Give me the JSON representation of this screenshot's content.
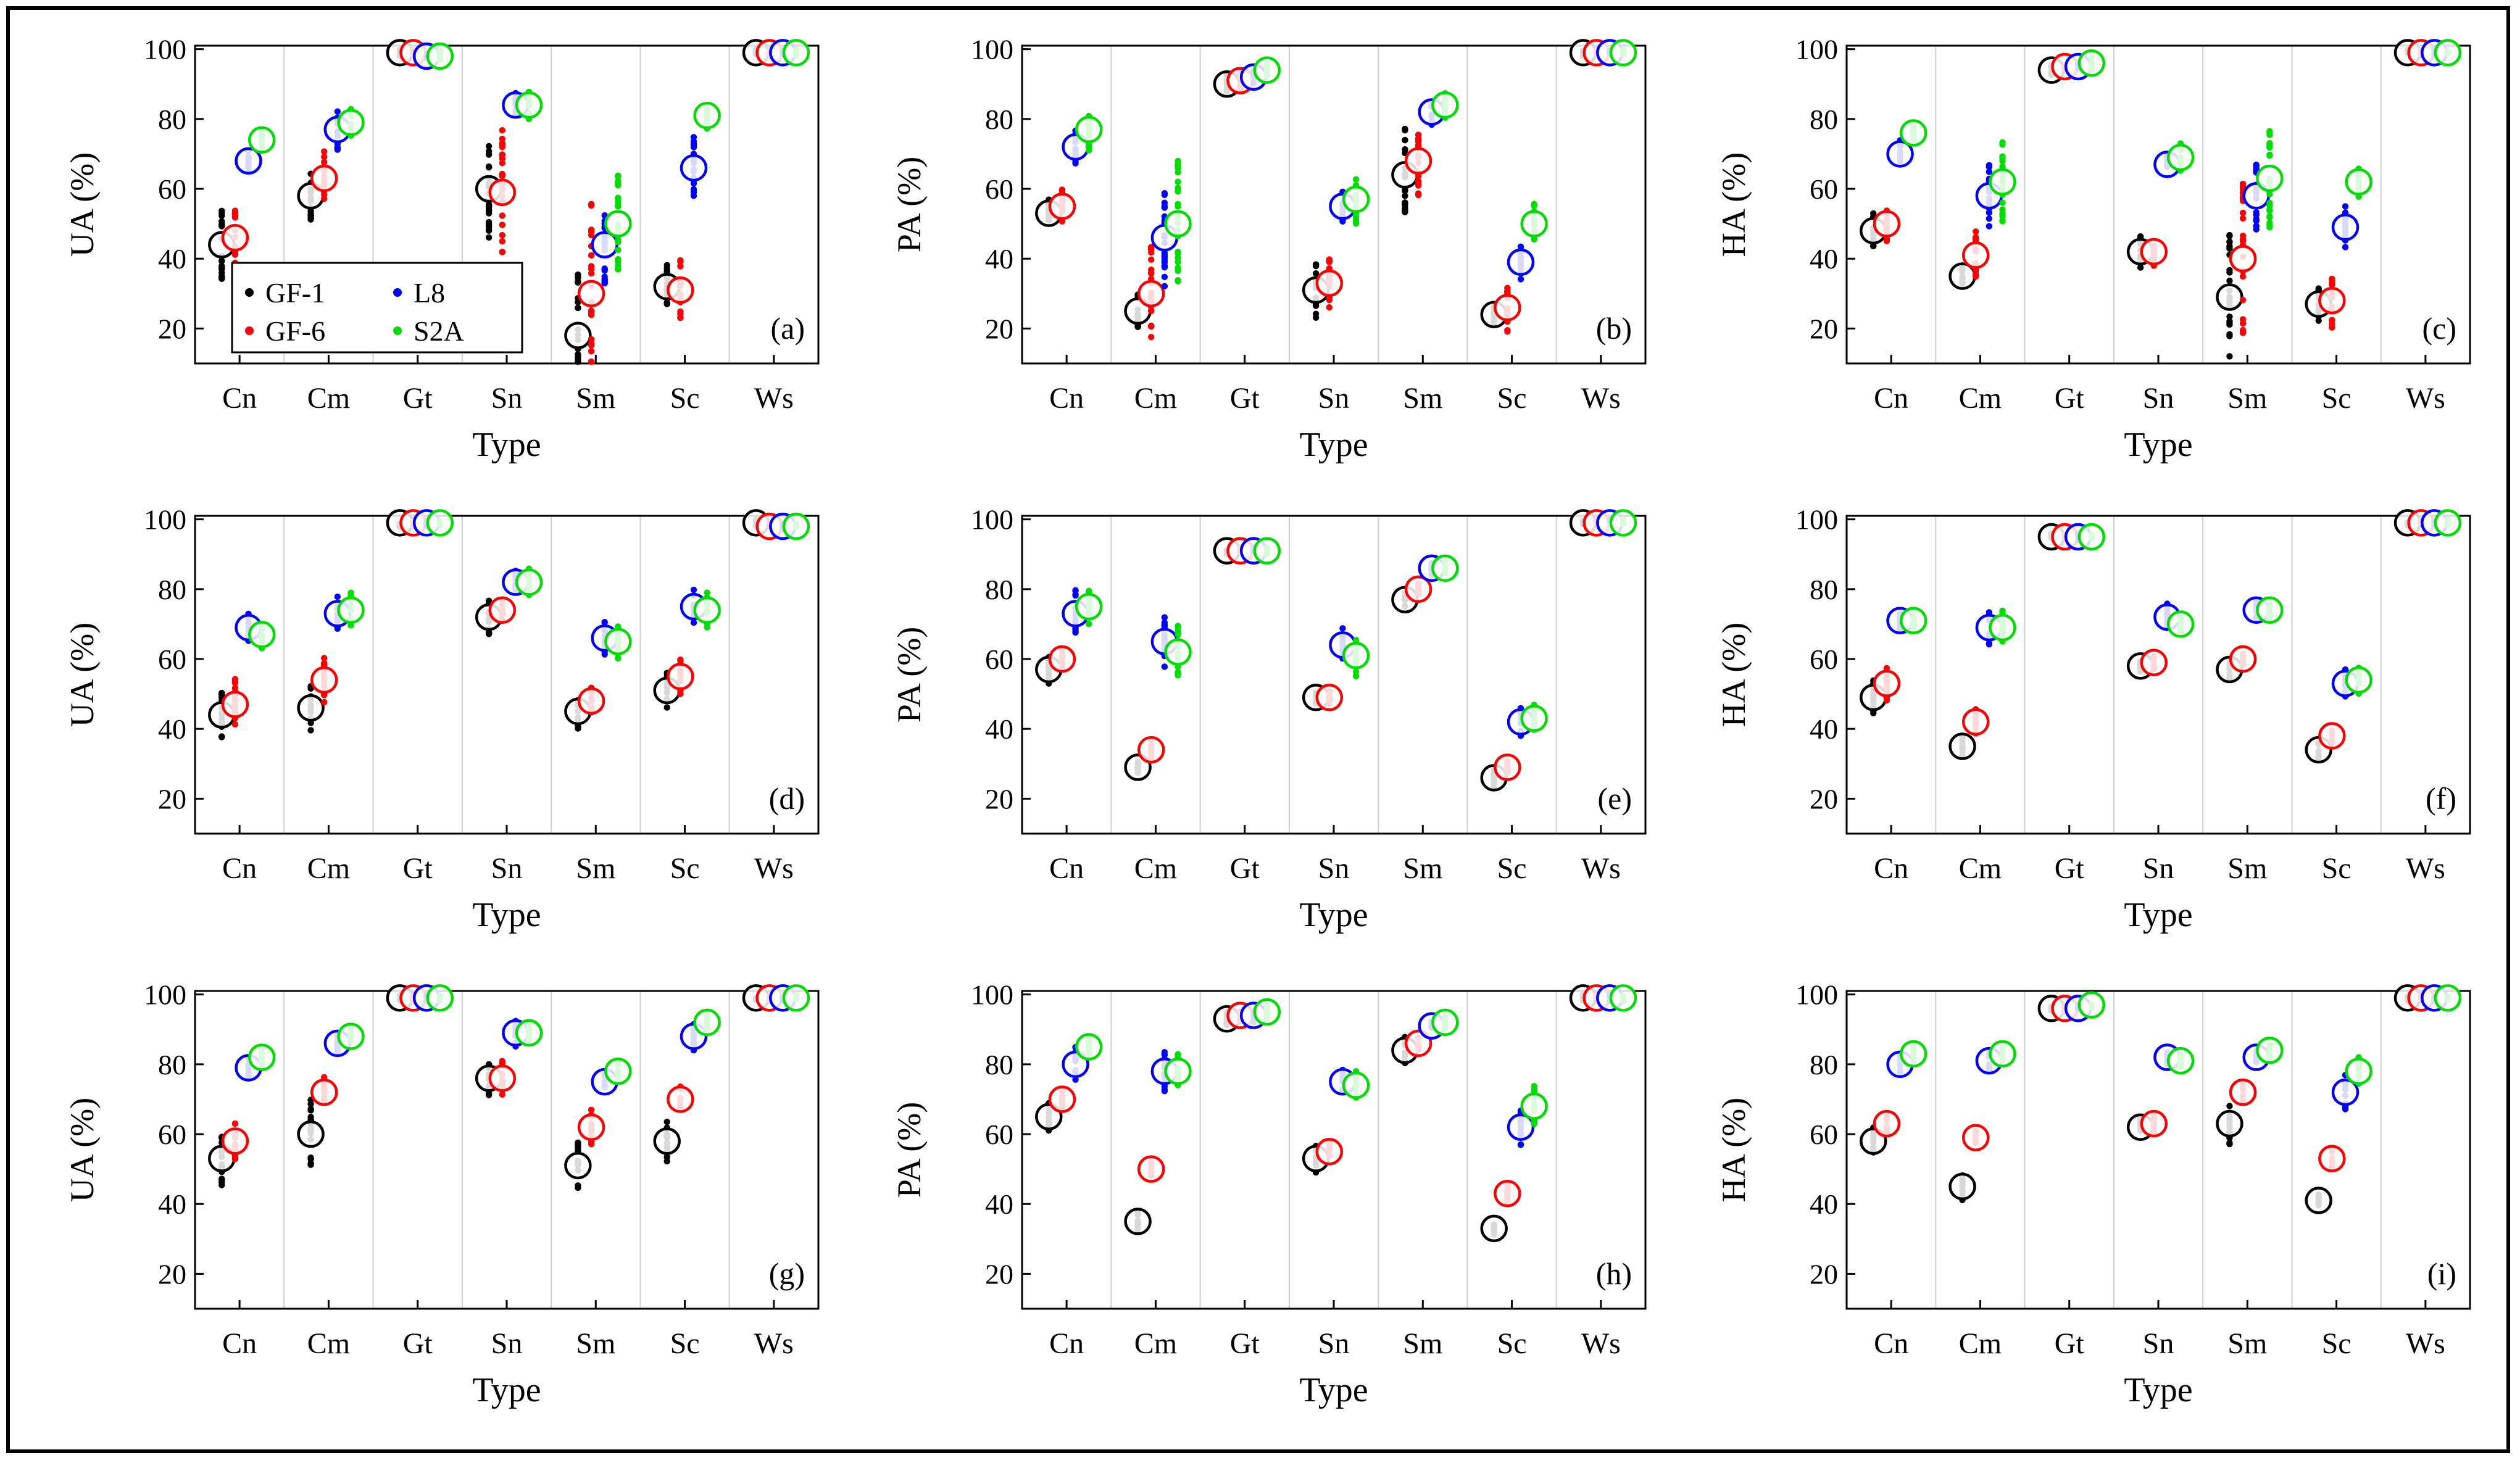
{
  "figure": {
    "x_label": "Type",
    "categories": [
      "Cn",
      "Cm",
      "Gt",
      "Sn",
      "Sm",
      "Sc",
      "Ws"
    ],
    "yticks": [
      "20",
      "40",
      "60",
      "80",
      "100"
    ],
    "legend": [
      {
        "label": "GF-1",
        "color": "#000000"
      },
      {
        "label": "L8",
        "color": "#0000ff"
      },
      {
        "label": "GF-6",
        "color": "#ff0000"
      },
      {
        "label": "S2A",
        "color": "#00dd00"
      }
    ]
  },
  "chart_data": [
    {
      "type": "scatter",
      "id": "a",
      "panel_label": "(a)",
      "ylabel": "UA (%)",
      "ylim": [
        10,
        101
      ],
      "means": {
        "Cn": [
          44,
          46,
          68,
          74
        ],
        "Cm": [
          58,
          63,
          77,
          79
        ],
        "Gt": [
          99,
          99,
          98,
          98
        ],
        "Sn": [
          60,
          59,
          84,
          84
        ],
        "Sm": [
          18,
          30,
          44,
          50
        ],
        "Sc": [
          32,
          31,
          66,
          81
        ],
        "Ws": [
          99,
          99,
          99,
          99
        ]
      },
      "spread": {
        "Cn": [
          10,
          8,
          3,
          3
        ],
        "Cm": [
          8,
          8,
          6,
          4
        ],
        "Gt": [
          1,
          1,
          1,
          2
        ],
        "Sn": [
          14,
          18,
          4,
          4
        ],
        "Sm": [
          22,
          28,
          12,
          14
        ],
        "Sc": [
          7,
          9,
          9,
          4
        ],
        "Ws": [
          1,
          1,
          1,
          1
        ]
      }
    },
    {
      "type": "scatter",
      "id": "b",
      "panel_label": "(b)",
      "ylabel": "PA (%)",
      "ylim": [
        10,
        101
      ],
      "means": {
        "Cn": [
          53,
          55,
          72,
          77
        ],
        "Cm": [
          25,
          30,
          46,
          50
        ],
        "Gt": [
          90,
          91,
          92,
          94
        ],
        "Sn": [
          31,
          33,
          55,
          57
        ],
        "Sm": [
          64,
          68,
          82,
          84
        ],
        "Sc": [
          24,
          26,
          39,
          50
        ],
        "Ws": [
          99,
          99,
          99,
          99
        ]
      },
      "spread": {
        "Cn": [
          4,
          5,
          5,
          6
        ],
        "Cm": [
          5,
          14,
          14,
          20
        ],
        "Gt": [
          3,
          3,
          2,
          2
        ],
        "Sn": [
          8,
          7,
          5,
          7
        ],
        "Sm": [
          14,
          10,
          4,
          4
        ],
        "Sc": [
          3,
          7,
          5,
          6
        ],
        "Ws": [
          1,
          1,
          1,
          1
        ]
      }
    },
    {
      "type": "scatter",
      "id": "c",
      "panel_label": "(c)",
      "ylabel": "HA (%)",
      "ylim": [
        10,
        101
      ],
      "means": {
        "Cn": [
          48,
          50,
          70,
          76
        ],
        "Cm": [
          35,
          41,
          58,
          62
        ],
        "Gt": [
          94,
          95,
          95,
          96
        ],
        "Sn": [
          42,
          42,
          67,
          69
        ],
        "Sm": [
          29,
          40,
          58,
          63
        ],
        "Sc": [
          27,
          28,
          49,
          62
        ],
        "Ws": [
          99,
          99,
          99,
          99
        ]
      },
      "spread": {
        "Cn": [
          5,
          5,
          4,
          3
        ],
        "Cm": [
          3,
          7,
          9,
          12
        ],
        "Gt": [
          2,
          1,
          1,
          2
        ],
        "Sn": [
          5,
          4,
          3,
          4
        ],
        "Sm": [
          18,
          22,
          10,
          14
        ],
        "Sc": [
          5,
          8,
          6,
          5
        ],
        "Ws": [
          1,
          1,
          1,
          1
        ]
      }
    },
    {
      "type": "scatter",
      "id": "d",
      "panel_label": "(d)",
      "ylabel": "UA (%)",
      "ylim": [
        10,
        101
      ],
      "means": {
        "Cn": [
          44,
          47,
          69,
          67
        ],
        "Cm": [
          46,
          54,
          73,
          74
        ],
        "Gt": [
          99,
          99,
          99,
          99
        ],
        "Sn": [
          72,
          74,
          82,
          82
        ],
        "Sm": [
          45,
          48,
          66,
          65
        ],
        "Sc": [
          51,
          55,
          75,
          74
        ],
        "Ws": [
          99,
          98,
          98,
          98
        ]
      },
      "spread": {
        "Cn": [
          7,
          8,
          4,
          4
        ],
        "Cm": [
          7,
          7,
          5,
          5
        ],
        "Gt": [
          1,
          1,
          1,
          1
        ],
        "Sn": [
          5,
          4,
          4,
          5
        ],
        "Sm": [
          5,
          4,
          5,
          5
        ],
        "Sc": [
          5,
          5,
          5,
          5
        ],
        "Ws": [
          1,
          1,
          1,
          1
        ]
      }
    },
    {
      "type": "scatter",
      "id": "e",
      "panel_label": "(e)",
      "ylabel": "PA (%)",
      "ylim": [
        10,
        101
      ],
      "means": {
        "Cn": [
          57,
          60,
          73,
          75
        ],
        "Cm": [
          29,
          34,
          65,
          62
        ],
        "Gt": [
          91,
          91,
          91,
          91
        ],
        "Sn": [
          49,
          49,
          64,
          61
        ],
        "Sm": [
          77,
          80,
          86,
          86
        ],
        "Sc": [
          26,
          29,
          42,
          43
        ],
        "Ws": [
          99,
          99,
          99,
          99
        ]
      },
      "spread": {
        "Cn": [
          4,
          3,
          7,
          5
        ],
        "Cm": [
          2,
          3,
          8,
          8
        ],
        "Gt": [
          1,
          1,
          1,
          1
        ],
        "Sn": [
          2,
          2,
          6,
          6
        ],
        "Sm": [
          2,
          2,
          2,
          2
        ],
        "Sc": [
          3,
          2,
          4,
          4
        ],
        "Ws": [
          1,
          1,
          1,
          1
        ]
      }
    },
    {
      "type": "scatter",
      "id": "f",
      "panel_label": "(f)",
      "ylabel": "HA (%)",
      "ylim": [
        10,
        101
      ],
      "means": {
        "Cn": [
          49,
          53,
          71,
          71
        ],
        "Cm": [
          35,
          42,
          69,
          69
        ],
        "Gt": [
          95,
          95,
          95,
          95
        ],
        "Sn": [
          58,
          59,
          72,
          70
        ],
        "Sm": [
          57,
          60,
          74,
          74
        ],
        "Sc": [
          34,
          38,
          53,
          54
        ],
        "Ws": [
          99,
          99,
          99,
          99
        ]
      },
      "spread": {
        "Cn": [
          5,
          5,
          3,
          3
        ],
        "Cm": [
          3,
          4,
          5,
          5
        ],
        "Gt": [
          1,
          1,
          1,
          1
        ],
        "Sn": [
          2,
          2,
          4,
          3
        ],
        "Sm": [
          3,
          2,
          3,
          3
        ],
        "Sc": [
          3,
          2,
          4,
          4
        ],
        "Ws": [
          1,
          1,
          1,
          1
        ]
      }
    },
    {
      "type": "scatter",
      "id": "g",
      "panel_label": "(g)",
      "ylabel": "UA (%)",
      "ylim": [
        10,
        101
      ],
      "means": {
        "Cn": [
          53,
          58,
          79,
          82
        ],
        "Cm": [
          60,
          72,
          86,
          88
        ],
        "Gt": [
          99,
          99,
          99,
          99
        ],
        "Sn": [
          76,
          76,
          89,
          89
        ],
        "Sm": [
          51,
          62,
          75,
          78
        ],
        "Sc": [
          58,
          70,
          88,
          92
        ],
        "Ws": [
          99,
          99,
          99,
          99
        ]
      },
      "spread": {
        "Cn": [
          8,
          6,
          3,
          3
        ],
        "Cm": [
          10,
          5,
          3,
          3
        ],
        "Gt": [
          1,
          1,
          1,
          1
        ],
        "Sn": [
          5,
          5,
          4,
          3
        ],
        "Sm": [
          7,
          5,
          3,
          3
        ],
        "Sc": [
          6,
          4,
          4,
          3
        ],
        "Ws": [
          1,
          1,
          1,
          1
        ]
      }
    },
    {
      "type": "scatter",
      "id": "h",
      "panel_label": "(h)",
      "ylabel": "PA (%)",
      "ylim": [
        10,
        101
      ],
      "means": {
        "Cn": [
          65,
          70,
          80,
          85
        ],
        "Cm": [
          35,
          50,
          78,
          78
        ],
        "Gt": [
          93,
          94,
          94,
          95
        ],
        "Sn": [
          53,
          55,
          75,
          74
        ],
        "Sm": [
          84,
          86,
          91,
          92
        ],
        "Sc": [
          33,
          43,
          62,
          68
        ],
        "Ws": [
          99,
          99,
          99,
          99
        ]
      },
      "spread": {
        "Cn": [
          4,
          3,
          5,
          3
        ],
        "Cm": [
          3,
          2,
          6,
          5
        ],
        "Gt": [
          2,
          2,
          2,
          2
        ],
        "Sn": [
          5,
          3,
          4,
          4
        ],
        "Sm": [
          4,
          2,
          2,
          2
        ],
        "Sc": [
          2,
          3,
          6,
          6
        ],
        "Ws": [
          1,
          1,
          1,
          1
        ]
      }
    },
    {
      "type": "scatter",
      "id": "i",
      "panel_label": "(i)",
      "ylabel": "HA (%)",
      "ylim": [
        10,
        101
      ],
      "means": {
        "Cn": [
          58,
          63,
          80,
          83
        ],
        "Cm": [
          45,
          59,
          81,
          83
        ],
        "Gt": [
          96,
          96,
          96,
          97
        ],
        "Sn": [
          62,
          63,
          82,
          81
        ],
        "Sm": [
          63,
          72,
          82,
          84
        ],
        "Sc": [
          41,
          53,
          72,
          78
        ],
        "Ws": [
          99,
          99,
          99,
          99
        ]
      },
      "spread": {
        "Cn": [
          4,
          3,
          3,
          2
        ],
        "Cm": [
          4,
          2,
          3,
          2
        ],
        "Gt": [
          1,
          1,
          1,
          1
        ],
        "Sn": [
          3,
          3,
          2,
          2
        ],
        "Sm": [
          6,
          3,
          2,
          2
        ],
        "Sc": [
          2,
          3,
          5,
          4
        ],
        "Ws": [
          1,
          1,
          1,
          1
        ]
      }
    }
  ]
}
